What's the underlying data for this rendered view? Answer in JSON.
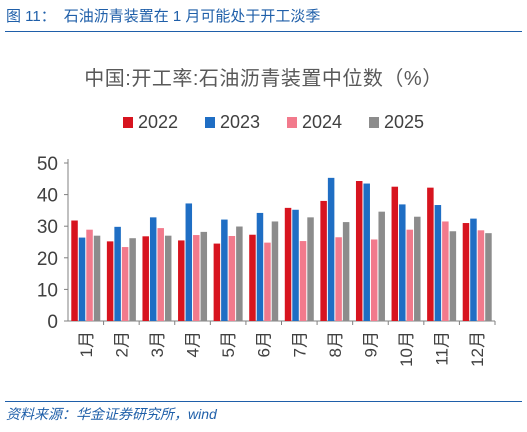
{
  "header": {
    "figure_label": "图 11：",
    "title": "石油沥青装置在 1 月可能处于开工淡季"
  },
  "footer": {
    "source": "资料来源：华金证券研究所，wind"
  },
  "chart_data": {
    "type": "bar",
    "title": "中国:开工率:石油沥青装置中位数（%）",
    "xlabel": "",
    "ylabel": "",
    "ylim": [
      0,
      50
    ],
    "yticks": [
      0,
      10,
      20,
      30,
      40,
      50
    ],
    "grid": false,
    "legend_position": "top",
    "categories": [
      "1月",
      "2月",
      "3月",
      "4月",
      "5月",
      "6月",
      "7月",
      "8月",
      "9月",
      "10月",
      "11月",
      "12月"
    ],
    "series": [
      {
        "name": "2022",
        "color": "#d7141f",
        "values": [
          31.8,
          25.2,
          26.8,
          25.5,
          24.5,
          27.3,
          35.8,
          38.0,
          44.3,
          42.5,
          42.2,
          31.0
        ]
      },
      {
        "name": "2023",
        "color": "#1f6ec4",
        "values": [
          26.4,
          29.8,
          32.8,
          37.2,
          32.1,
          34.2,
          35.2,
          45.3,
          43.5,
          36.9,
          36.7,
          32.4
        ]
      },
      {
        "name": "2024",
        "color": "#f27a8c",
        "values": [
          28.9,
          23.4,
          29.4,
          27.2,
          26.9,
          24.8,
          25.3,
          26.5,
          25.8,
          28.9,
          31.5,
          28.7
        ]
      },
      {
        "name": "2025",
        "color": "#8c8c8c",
        "values": [
          27.0,
          26.2,
          27.0,
          28.2,
          29.9,
          31.5,
          32.8,
          31.3,
          34.6,
          33.0,
          28.4,
          27.8
        ]
      }
    ]
  }
}
